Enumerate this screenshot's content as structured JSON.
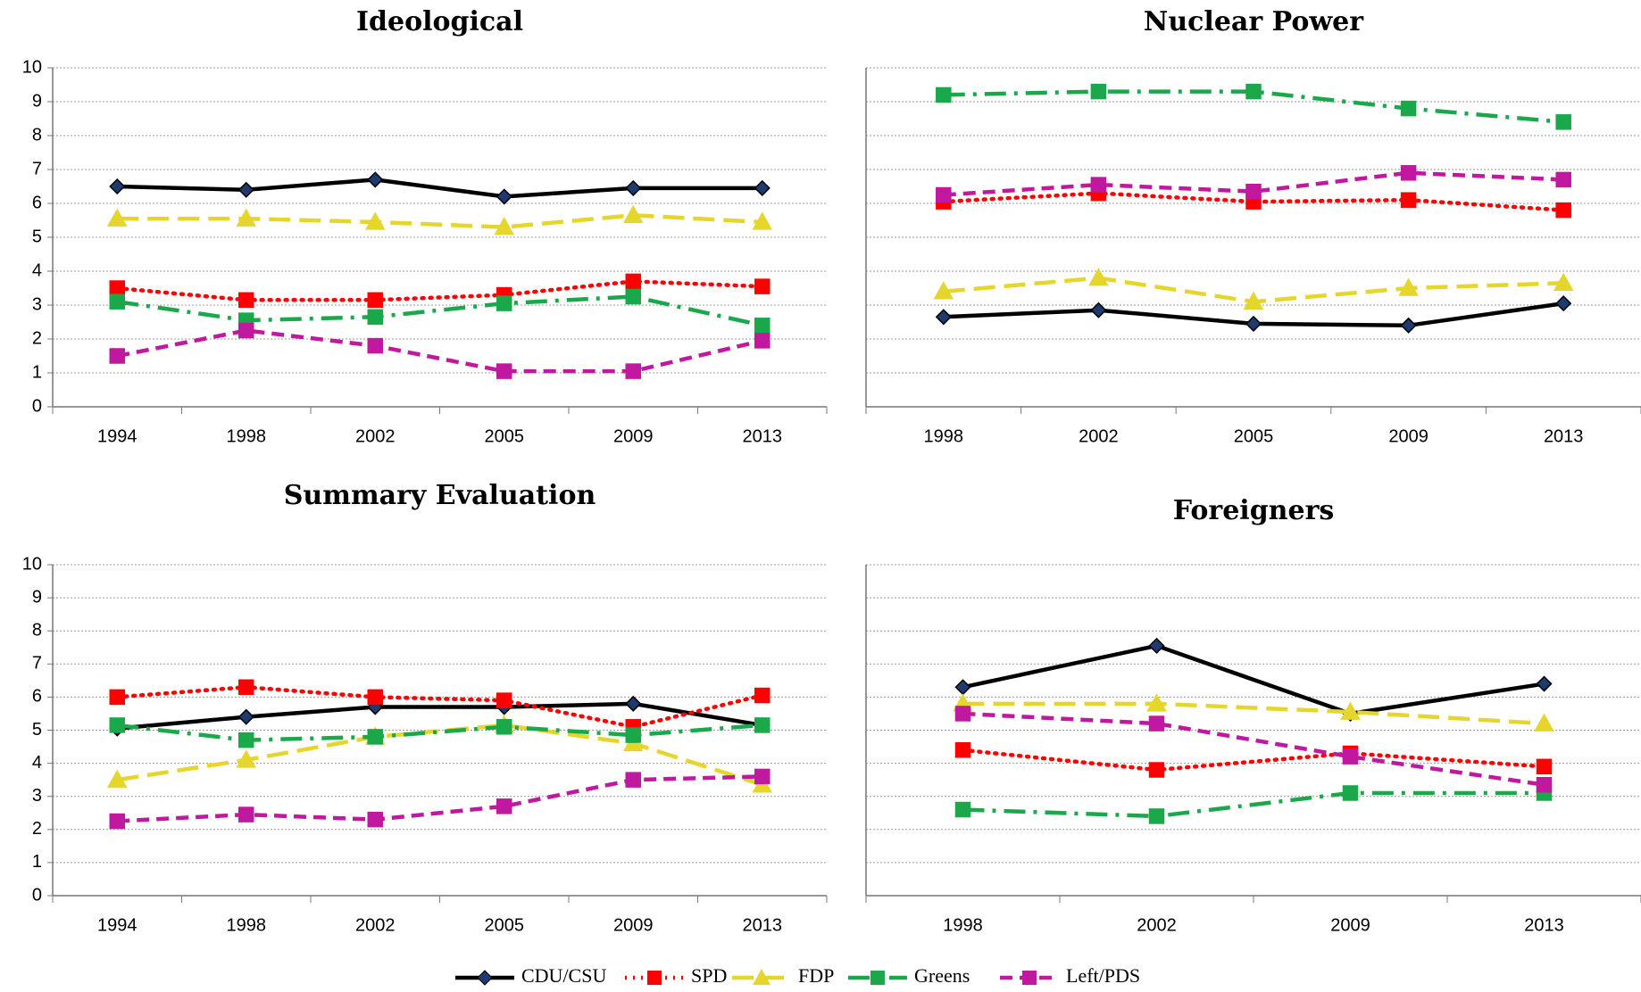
{
  "chart_data": [
    {
      "type": "line",
      "title": "Ideological",
      "categories": [
        "1994",
        "1998",
        "2002",
        "2005",
        "2009",
        "2013"
      ],
      "ylim": [
        0,
        10
      ],
      "yticks": [
        0,
        1,
        2,
        3,
        4,
        5,
        6,
        7,
        8,
        9,
        10
      ],
      "grid": true,
      "y_tick_labels": true,
      "series": [
        {
          "name": "CDU/CSU",
          "color": "#000000",
          "marker": "diamond",
          "dash": "solid",
          "values": [
            6.5,
            6.4,
            6.7,
            6.2,
            6.45,
            6.45
          ]
        },
        {
          "name": "SPD",
          "color": "#ff0000",
          "marker": "square",
          "dash": "dotted",
          "values": [
            3.5,
            3.15,
            3.15,
            3.3,
            3.7,
            3.55
          ]
        },
        {
          "name": "FDP",
          "color": "#e6d52b",
          "marker": "triangle",
          "dash": "longdash",
          "values": [
            5.55,
            5.55,
            5.45,
            5.3,
            5.65,
            5.45
          ]
        },
        {
          "name": "Greens",
          "color": "#1ba84b",
          "marker": "square",
          "dash": "dashdot",
          "values": [
            3.1,
            2.55,
            2.65,
            3.05,
            3.25,
            2.4
          ]
        },
        {
          "name": "Left/PDS",
          "color": "#c0189e",
          "marker": "square",
          "dash": "dash",
          "values": [
            1.5,
            2.25,
            1.8,
            1.05,
            1.05,
            1.95
          ]
        }
      ]
    },
    {
      "type": "line",
      "title": "Nuclear Power",
      "categories": [
        "1998",
        "2002",
        "2005",
        "2009",
        "2013"
      ],
      "ylim": [
        0,
        10
      ],
      "yticks": [
        0,
        1,
        2,
        3,
        4,
        5,
        6,
        7,
        8,
        9,
        10
      ],
      "grid": true,
      "y_tick_labels": false,
      "series": [
        {
          "name": "CDU/CSU",
          "color": "#000000",
          "marker": "diamond",
          "dash": "solid",
          "values": [
            2.65,
            2.85,
            2.45,
            2.4,
            3.05
          ]
        },
        {
          "name": "SPD",
          "color": "#ff0000",
          "marker": "square",
          "dash": "dotted",
          "values": [
            6.05,
            6.3,
            6.05,
            6.1,
            5.8
          ]
        },
        {
          "name": "FDP",
          "color": "#e6d52b",
          "marker": "triangle",
          "dash": "longdash",
          "values": [
            3.4,
            3.8,
            3.1,
            3.5,
            3.65
          ]
        },
        {
          "name": "Greens",
          "color": "#1ba84b",
          "marker": "square",
          "dash": "dashdot",
          "values": [
            9.2,
            9.3,
            9.3,
            8.8,
            8.4
          ]
        },
        {
          "name": "Left/PDS",
          "color": "#c0189e",
          "marker": "square",
          "dash": "dash",
          "values": [
            6.25,
            6.55,
            6.35,
            6.9,
            6.7
          ]
        }
      ]
    },
    {
      "type": "line",
      "title": "Summary Evaluation",
      "categories": [
        "1994",
        "1998",
        "2002",
        "2005",
        "2009",
        "2013"
      ],
      "ylim": [
        0,
        10
      ],
      "yticks": [
        0,
        1,
        2,
        3,
        4,
        5,
        6,
        7,
        8,
        9,
        10
      ],
      "grid": true,
      "y_tick_labels": true,
      "series": [
        {
          "name": "CDU/CSU",
          "color": "#000000",
          "marker": "diamond",
          "dash": "solid",
          "values": [
            5.05,
            5.4,
            5.7,
            5.7,
            5.8,
            5.15
          ]
        },
        {
          "name": "SPD",
          "color": "#ff0000",
          "marker": "square",
          "dash": "dotted",
          "values": [
            6.0,
            6.3,
            6.0,
            5.9,
            5.1,
            6.05
          ]
        },
        {
          "name": "FDP",
          "color": "#e6d52b",
          "marker": "triangle",
          "dash": "longdash",
          "values": [
            3.5,
            4.1,
            4.8,
            5.15,
            4.6,
            3.35
          ]
        },
        {
          "name": "Greens",
          "color": "#1ba84b",
          "marker": "square",
          "dash": "dashdot",
          "values": [
            5.15,
            4.7,
            4.8,
            5.1,
            4.85,
            5.15
          ]
        },
        {
          "name": "Left/PDS",
          "color": "#c0189e",
          "marker": "square",
          "dash": "dash",
          "values": [
            2.25,
            2.45,
            2.3,
            2.7,
            3.5,
            3.6
          ]
        }
      ]
    },
    {
      "type": "line",
      "title": "Foreigners",
      "categories": [
        "1998",
        "2002",
        "2009",
        "2013"
      ],
      "ylim": [
        0,
        10
      ],
      "yticks": [
        0,
        1,
        2,
        3,
        4,
        5,
        6,
        7,
        8,
        9,
        10
      ],
      "grid": true,
      "y_tick_labels": false,
      "series": [
        {
          "name": "CDU/CSU",
          "color": "#000000",
          "marker": "diamond",
          "dash": "solid",
          "values": [
            6.3,
            7.55,
            5.5,
            6.4
          ]
        },
        {
          "name": "SPD",
          "color": "#ff0000",
          "marker": "square",
          "dash": "dotted",
          "values": [
            4.4,
            3.8,
            4.3,
            3.9
          ]
        },
        {
          "name": "FDP",
          "color": "#e6d52b",
          "marker": "triangle",
          "dash": "longdash",
          "values": [
            5.8,
            5.8,
            5.55,
            5.2
          ]
        },
        {
          "name": "Greens",
          "color": "#1ba84b",
          "marker": "square",
          "dash": "dashdot",
          "values": [
            2.6,
            2.4,
            3.1,
            3.1
          ]
        },
        {
          "name": "Left/PDS",
          "color": "#c0189e",
          "marker": "square",
          "dash": "dash",
          "values": [
            5.5,
            5.2,
            4.2,
            3.35
          ]
        }
      ]
    }
  ]
}
